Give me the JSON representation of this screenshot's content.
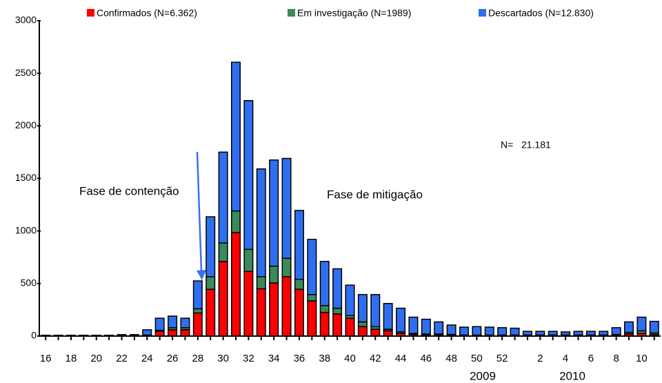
{
  "chart_data": {
    "type": "stacked_bar",
    "categories": [
      "16",
      null,
      "18",
      null,
      "20",
      null,
      "22",
      null,
      "24",
      null,
      "26",
      null,
      "28",
      null,
      "30",
      null,
      "32",
      null,
      "34",
      null,
      "36",
      null,
      "38",
      null,
      "40",
      null,
      "42",
      null,
      "44",
      null,
      "46",
      null,
      "48",
      null,
      "50",
      null,
      "52",
      null,
      null,
      "2",
      null,
      "4",
      null,
      "6",
      null,
      "8",
      null,
      "10",
      null
    ],
    "series": [
      {
        "name": "Confirmados (N=6.362)",
        "color": "#ff0000",
        "values": [
          1,
          1,
          1,
          1,
          1,
          1,
          2,
          2,
          5,
          45,
          60,
          60,
          220,
          445,
          710,
          985,
          615,
          450,
          505,
          565,
          445,
          335,
          225,
          210,
          170,
          90,
          65,
          50,
          25,
          15,
          10,
          10,
          5,
          5,
          5,
          5,
          5,
          5,
          5,
          5,
          5,
          5,
          5,
          5,
          5,
          5,
          20,
          25,
          15
        ]
      },
      {
        "name": "Em investigação (N=1989)",
        "color": "#3a8a5a",
        "values": [
          1,
          1,
          1,
          1,
          1,
          1,
          2,
          2,
          5,
          10,
          20,
          20,
          40,
          120,
          175,
          205,
          210,
          115,
          160,
          175,
          95,
          60,
          65,
          55,
          25,
          45,
          25,
          15,
          15,
          10,
          10,
          10,
          10,
          5,
          5,
          5,
          5,
          5,
          5,
          5,
          5,
          5,
          5,
          5,
          5,
          10,
          15,
          25,
          15
        ]
      },
      {
        "name": "Descartados (N=12.830)",
        "color": "#2f6ef0",
        "values": [
          6,
          6,
          6,
          6,
          6,
          6,
          10,
          10,
          50,
          115,
          110,
          90,
          265,
          570,
          865,
          1415,
          1415,
          1025,
          1010,
          950,
          655,
          525,
          420,
          375,
          290,
          260,
          305,
          245,
          225,
          155,
          140,
          115,
          90,
          75,
          80,
          75,
          70,
          65,
          35,
          35,
          35,
          30,
          35,
          35,
          35,
          65,
          100,
          130,
          110
        ]
      }
    ],
    "ylim": [
      0,
      3000
    ],
    "yticks": [
      0,
      500,
      1000,
      1500,
      2000,
      2500,
      3000
    ],
    "year_labels": [
      "2009",
      "2010"
    ],
    "annotations": [
      "Fase de contenção",
      "Fase de mitigação",
      "N=   21.181"
    ]
  }
}
